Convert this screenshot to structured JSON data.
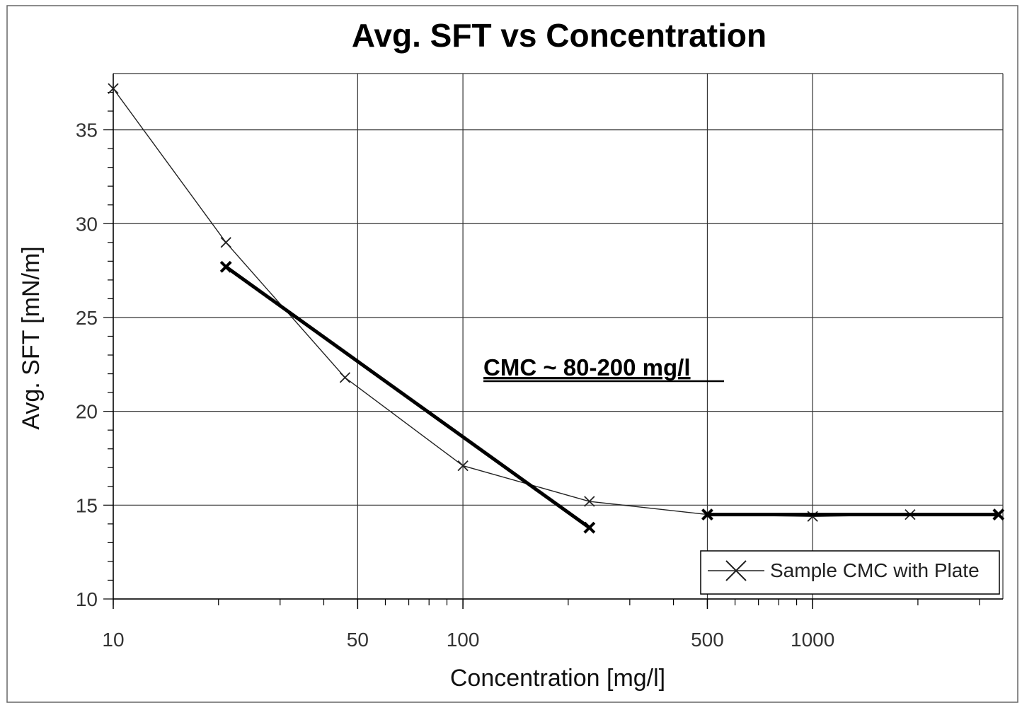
{
  "chart_data": {
    "type": "line",
    "title": "Avg. SFT vs Concentration",
    "xlabel": "Concentration [mg/l]",
    "ylabel": "Avg. SFT [mN/m]",
    "x_scale": "log",
    "xlim": [
      10,
      3500
    ],
    "ylim": [
      10,
      38
    ],
    "x_ticks": [
      {
        "value": 10,
        "label": "10"
      },
      {
        "value": 50,
        "label": "50"
      },
      {
        "value": 100,
        "label": "100"
      },
      {
        "value": 500,
        "label": "500"
      },
      {
        "value": 1000,
        "label": "1000"
      }
    ],
    "y_ticks": [
      {
        "value": 10,
        "label": "10"
      },
      {
        "value": 15,
        "label": "15"
      },
      {
        "value": 20,
        "label": "20"
      },
      {
        "value": 25,
        "label": "25"
      },
      {
        "value": 30,
        "label": "30"
      },
      {
        "value": 35,
        "label": "35"
      }
    ],
    "grid": true,
    "legend_position": "bottom-right",
    "series": [
      {
        "name": "Sample CMC with Plate",
        "marker": "x",
        "color": "#222222",
        "x": [
          10,
          21,
          46,
          100,
          230,
          500,
          1000,
          1900,
          3400
        ],
        "y": [
          37.2,
          29.0,
          21.8,
          17.1,
          15.2,
          14.5,
          14.4,
          14.5,
          14.5
        ]
      }
    ],
    "trend_lines": [
      {
        "x": [
          21,
          230
        ],
        "y": [
          27.7,
          13.8
        ],
        "color": "#000000"
      },
      {
        "x": [
          500,
          3400
        ],
        "y": [
          14.5,
          14.5
        ],
        "color": "#000000"
      }
    ],
    "annotation": {
      "text": "CMC  ~ 80-200 mg/l"
    }
  }
}
